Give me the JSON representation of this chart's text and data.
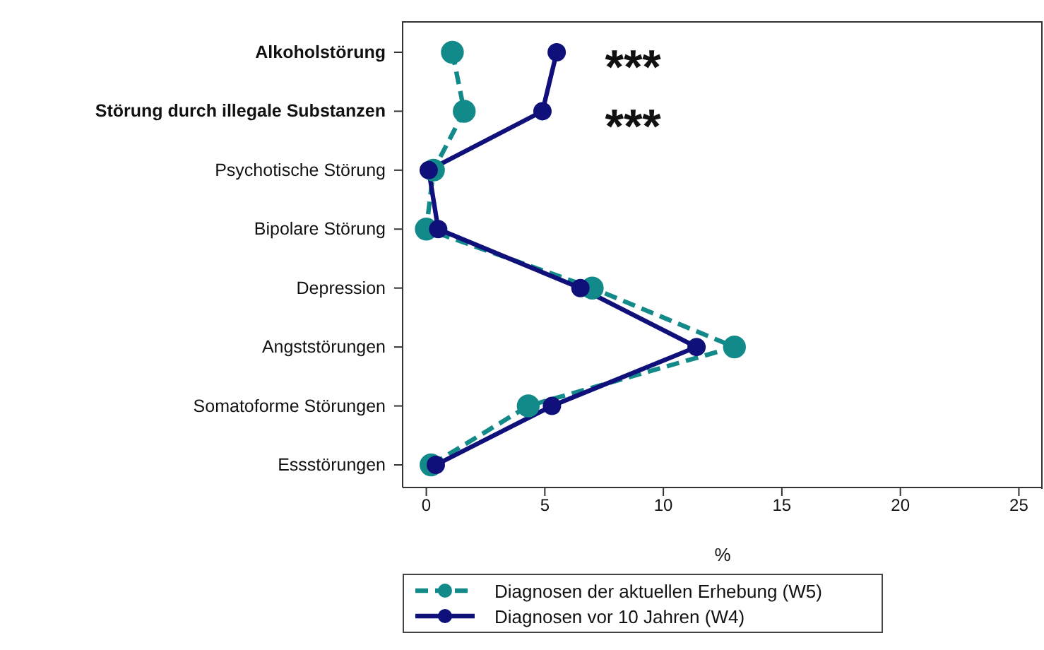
{
  "chart_data": {
    "type": "line",
    "orientation": "horizontal",
    "xlabel": "%",
    "categories": [
      "Alkoholstörung",
      "Störung durch illegale Substanzen",
      "Psychotische Störung",
      "Bipolare Störung",
      "Depression",
      "Angststörungen",
      "Somatoforme Störungen",
      "Essstörungen"
    ],
    "series": [
      {
        "name": "Diagnosen der aktuellen Erhebung (W5)",
        "color": "#138a8a",
        "line_style": "dashed",
        "values": [
          1.1,
          1.6,
          0.3,
          0.0,
          7.0,
          13.0,
          4.3,
          0.2
        ]
      },
      {
        "name": "Diagnosen vor 10 Jahren (W4)",
        "color": "#10107a",
        "line_style": "solid",
        "values": [
          5.5,
          4.9,
          0.1,
          0.5,
          6.5,
          11.4,
          5.3,
          0.4
        ]
      }
    ],
    "xlim": [
      -1,
      26
    ],
    "xticks": [
      0,
      5,
      10,
      15,
      20,
      25
    ],
    "marker": "circle",
    "legend": "bottom",
    "annotations": [
      "***",
      "***"
    ]
  }
}
